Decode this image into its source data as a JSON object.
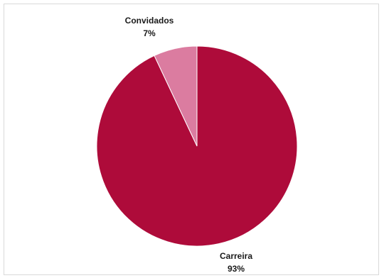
{
  "chart_data": {
    "type": "pie",
    "slices": [
      {
        "label": "Carreira",
        "value": 93,
        "value_label": "93%",
        "color": "#AE0B3A"
      },
      {
        "label": "Convidados",
        "value": 7,
        "value_label": "7%",
        "color": "#DB7CA0"
      }
    ],
    "title": "",
    "legend": "none"
  }
}
